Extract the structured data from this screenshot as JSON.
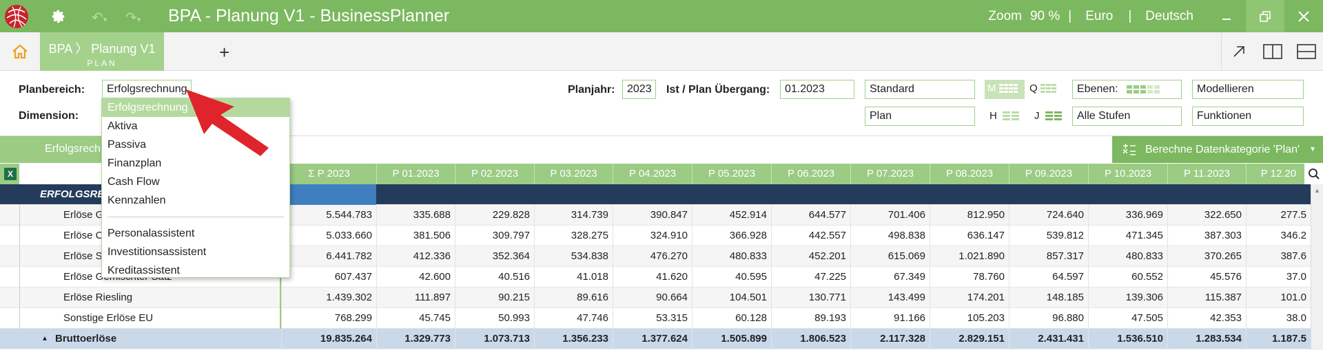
{
  "app": {
    "title": "BPA - Planung V1 - BusinessPlanner",
    "zoom_label": "Zoom",
    "zoom_value": "90 %",
    "sep": "|",
    "currency": "Euro",
    "language": "Deutsch"
  },
  "tabs": [
    {
      "label": "BPA 〉 Planung V1",
      "sub": "PLAN"
    }
  ],
  "controls": {
    "planbereich_label": "Planbereich:",
    "planbereich_value": "Erfolgsrechnung",
    "dimension_label": "Dimension:",
    "planjahr_label": "Planjahr:",
    "planjahr_value": "2023",
    "uebergang_label": "Ist / Plan Übergang:",
    "uebergang_value": "01.2023",
    "standard": "Standard",
    "plan": "Plan",
    "m": "M",
    "q": "Q",
    "h": "H",
    "j": "J",
    "ebenen_label": "Ebenen:",
    "alle_stufen": "Alle Stufen",
    "modellieren": "Modellieren",
    "funktionen": "Funktionen"
  },
  "dropdown": {
    "items": [
      "Erfolgsrechnung",
      "Aktiva",
      "Passiva",
      "Finanzplan",
      "Cash Flow",
      "Kennzahlen"
    ],
    "items2": [
      "Personalassistent",
      "Investitionsassistent",
      "Kreditassistent"
    ]
  },
  "action": {
    "left_header": "Erfolgsrech",
    "calc_button": "Berechne Datenkategorie 'Plan'"
  },
  "table": {
    "headers": [
      "Σ  P  2023",
      "P 01.2023",
      "P 02.2023",
      "P 03.2023",
      "P 04.2023",
      "P 05.2023",
      "P 06.2023",
      "P 07.2023",
      "P 08.2023",
      "P 09.2023",
      "P 10.2023",
      "P 11.2023",
      "P 12.20"
    ],
    "section_title": "ERFOLGSRE",
    "rows": [
      {
        "name": "Erlöse G",
        "values": [
          "5.544.783",
          "335.688",
          "229.828",
          "314.739",
          "390.847",
          "452.914",
          "644.577",
          "701.406",
          "812.950",
          "724.640",
          "336.969",
          "322.650",
          "277.5"
        ]
      },
      {
        "name": "Erlöse C",
        "values": [
          "5.033.660",
          "381.506",
          "309.797",
          "328.275",
          "324.910",
          "366.928",
          "442.557",
          "498.838",
          "636.147",
          "539.812",
          "471.345",
          "387.303",
          "346.2"
        ]
      },
      {
        "name": "Erlöse S",
        "values": [
          "6.441.782",
          "412.336",
          "352.364",
          "534.838",
          "476.270",
          "480.833",
          "452.201",
          "615.069",
          "1.021.890",
          "857.317",
          "480.833",
          "370.265",
          "387.6"
        ]
      },
      {
        "name": "Erlöse Gemischter Satz",
        "values": [
          "607.437",
          "42.600",
          "40.516",
          "41.018",
          "41.620",
          "40.595",
          "47.225",
          "67.349",
          "78.760",
          "64.597",
          "60.552",
          "45.576",
          "37.0"
        ]
      },
      {
        "name": "Erlöse Riesling",
        "values": [
          "1.439.302",
          "111.897",
          "90.215",
          "89.616",
          "90.664",
          "104.501",
          "130.771",
          "143.499",
          "174.201",
          "148.185",
          "139.306",
          "115.387",
          "101.0"
        ]
      },
      {
        "name": "Sonstige Erlöse EU",
        "values": [
          "768.299",
          "45.745",
          "50.993",
          "47.746",
          "53.315",
          "60.128",
          "89.193",
          "91.166",
          "105.203",
          "96.880",
          "47.505",
          "42.353",
          "38.0"
        ]
      }
    ],
    "total": {
      "name": "Bruttoerlöse",
      "values": [
        "19.835.264",
        "1.329.773",
        "1.073.713",
        "1.356.233",
        "1.377.624",
        "1.505.899",
        "1.806.523",
        "2.117.328",
        "2.829.151",
        "2.431.431",
        "1.536.510",
        "1.283.534",
        "1.187.5"
      ]
    }
  },
  "colors": {
    "accent": "#7cb85f",
    "header_row": "#243b5c",
    "total_row": "#c9d9ea",
    "arrow": "#e0242b"
  }
}
